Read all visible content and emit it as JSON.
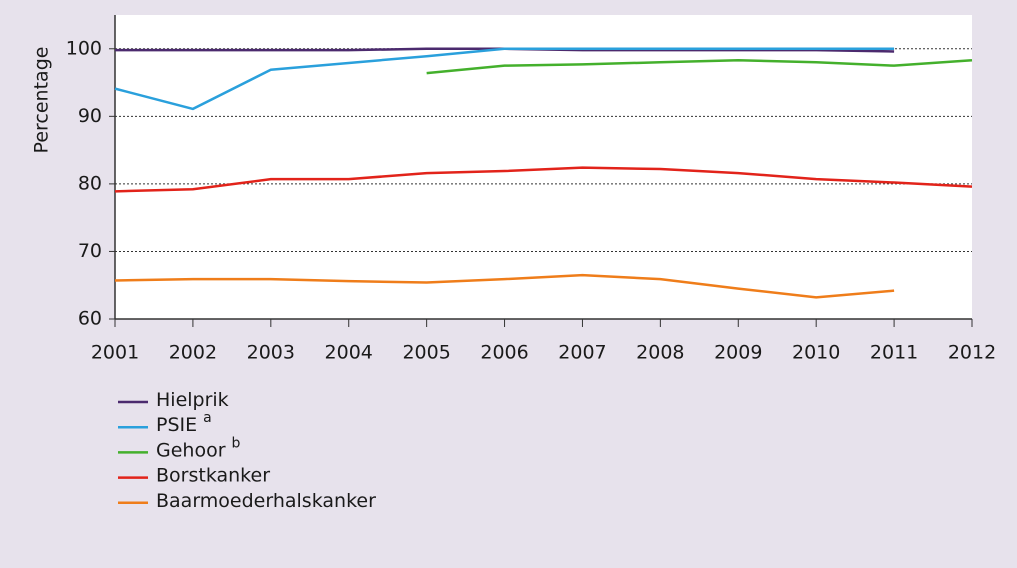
{
  "chart_data": {
    "type": "line",
    "ylabel": "Percentage",
    "categories": [
      "2001",
      "2002",
      "2003",
      "2004",
      "2005",
      "2006",
      "2007",
      "2008",
      "2009",
      "2010",
      "2011",
      "2012"
    ],
    "series": [
      {
        "name": "Hielprik",
        "color": "#4b2a6e",
        "values": [
          99.8,
          99.8,
          99.8,
          99.8,
          100,
          100,
          99.8,
          99.8,
          99.8,
          99.8,
          99.6,
          null
        ]
      },
      {
        "name": "PSIE",
        "superscript": "a",
        "color": "#2aa0dc",
        "values": [
          94.1,
          91.1,
          96.9,
          97.9,
          98.9,
          100,
          100,
          100,
          100,
          100,
          100,
          null
        ]
      },
      {
        "name": "Gehoor",
        "superscript": "b",
        "color": "#44b02c",
        "values": [
          null,
          null,
          null,
          null,
          96.4,
          97.5,
          97.7,
          98.0,
          98.3,
          98.0,
          97.5,
          98.3
        ]
      },
      {
        "name": "Borstkanker",
        "color": "#e2231a",
        "values": [
          78.9,
          79.2,
          80.7,
          80.7,
          81.6,
          81.9,
          82.4,
          82.2,
          81.6,
          80.7,
          80.2,
          79.6
        ]
      },
      {
        "name": "Baarmoederhalskanker",
        "color": "#ef7d1a",
        "values": [
          65.7,
          65.9,
          65.9,
          65.6,
          65.4,
          65.9,
          66.5,
          65.9,
          64.5,
          63.2,
          64.2,
          null
        ]
      }
    ],
    "ylim": [
      60,
      105
    ],
    "yticks": [
      60,
      70,
      80,
      90,
      100
    ],
    "grid": true
  }
}
